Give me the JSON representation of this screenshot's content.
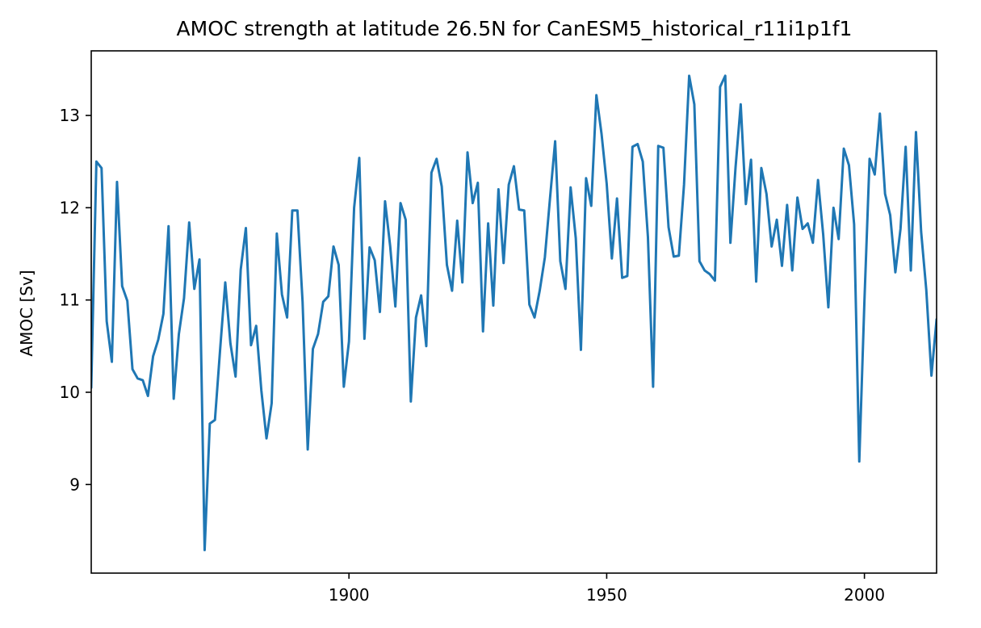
{
  "chart_data": {
    "type": "line",
    "title": "AMOC strength at latitude 26.5N for CanESM5_historical_r11i1p1f1",
    "xlabel": "",
    "ylabel": "AMOC [Sv]",
    "xlim": [
      1850,
      2014
    ],
    "ylim": [
      8.04,
      13.7
    ],
    "xticks": [
      1900,
      1950,
      2000
    ],
    "yticks": [
      9,
      10,
      11,
      12,
      13
    ],
    "grid": false,
    "line_color": "#1f77b4",
    "x_start": 1850,
    "values": [
      10.05,
      12.5,
      12.43,
      10.77,
      10.33,
      12.28,
      11.15,
      10.99,
      10.25,
      10.15,
      10.13,
      9.96,
      10.39,
      10.57,
      10.85,
      11.8,
      9.93,
      10.63,
      11.02,
      11.84,
      11.12,
      11.44,
      8.29,
      9.66,
      9.7,
      10.46,
      11.19,
      10.53,
      10.17,
      11.33,
      11.78,
      10.51,
      10.72,
      10.02,
      9.5,
      9.88,
      11.72,
      11.06,
      10.81,
      11.97,
      11.97,
      10.98,
      9.38,
      10.47,
      10.63,
      10.98,
      11.04,
      11.58,
      11.38,
      10.06,
      10.55,
      12.0,
      12.54,
      10.58,
      11.57,
      11.43,
      10.87,
      12.07,
      11.58,
      10.93,
      12.05,
      11.87,
      9.9,
      10.81,
      11.05,
      10.5,
      12.38,
      12.53,
      12.23,
      11.38,
      11.1,
      11.86,
      11.19,
      12.6,
      12.05,
      12.27,
      10.66,
      11.83,
      10.94,
      12.2,
      11.4,
      12.25,
      12.45,
      11.98,
      11.97,
      10.95,
      10.81,
      11.1,
      11.46,
      12.1,
      12.72,
      11.42,
      11.12,
      12.22,
      11.67,
      10.46,
      12.32,
      12.02,
      13.22,
      12.8,
      12.26,
      11.45,
      12.1,
      11.24,
      11.26,
      12.66,
      12.69,
      12.5,
      11.68,
      10.06,
      12.67,
      12.65,
      11.79,
      11.47,
      11.48,
      12.25,
      13.43,
      13.12,
      11.42,
      11.32,
      11.28,
      11.21,
      13.31,
      13.43,
      11.62,
      12.44,
      13.12,
      12.04,
      12.52,
      11.2,
      12.43,
      12.15,
      11.58,
      11.87,
      11.37,
      12.03,
      11.32,
      12.11,
      11.77,
      11.83,
      11.62,
      12.3,
      11.71,
      10.92,
      12.0,
      11.66,
      12.64,
      12.46,
      11.82,
      9.25,
      10.99,
      12.53,
      12.36,
      13.02,
      12.15,
      11.92,
      11.3,
      11.77,
      12.66,
      11.32,
      12.82,
      11.74,
      11.11,
      10.18,
      10.79
    ]
  }
}
